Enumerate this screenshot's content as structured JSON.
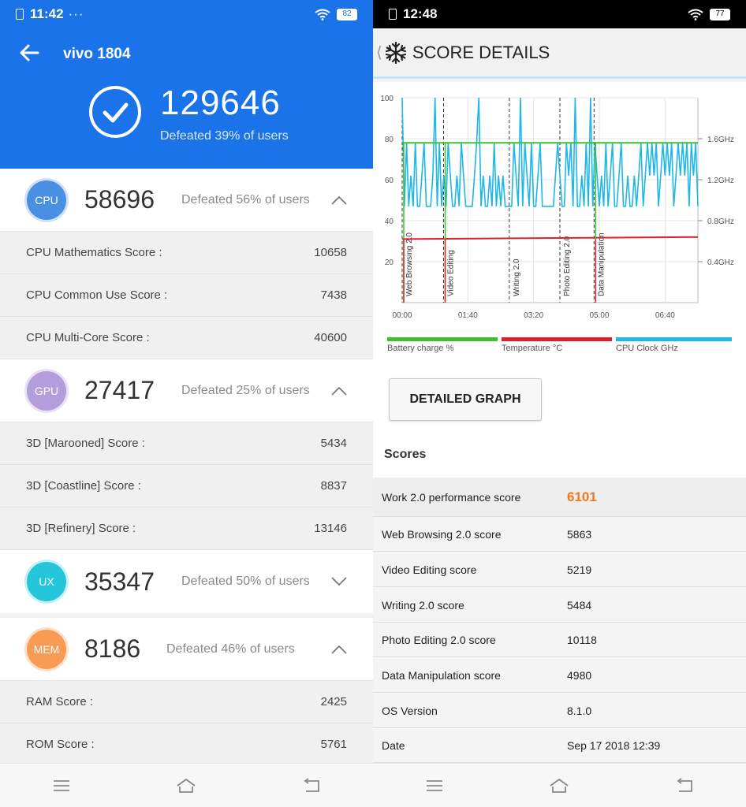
{
  "left": {
    "status_time": "11:42",
    "status_dots": "···",
    "battery": "82",
    "device_name": "vivo 1804",
    "total_score": "129646",
    "total_defeated": "Defeated 39% of users",
    "categories": [
      {
        "badge": "CPU",
        "score": "58696",
        "defeated": "Defeated 56% of users",
        "rows": [
          {
            "label": "CPU Mathematics Score :",
            "value": "10658"
          },
          {
            "label": "CPU Common Use Score :",
            "value": "7438"
          },
          {
            "label": "CPU Multi-Core Score :",
            "value": "40600"
          }
        ]
      },
      {
        "badge": "GPU",
        "score": "27417",
        "defeated": "Defeated 25% of users",
        "rows": [
          {
            "label": "3D [Marooned] Score :",
            "value": "5434"
          },
          {
            "label": "3D [Coastline] Score :",
            "value": "8837"
          },
          {
            "label": "3D [Refinery] Score :",
            "value": "13146"
          }
        ]
      },
      {
        "badge": "UX",
        "score": "35347",
        "defeated": "Defeated 50% of users",
        "rows": []
      },
      {
        "badge": "MEM",
        "score": "8186",
        "defeated": "Defeated 46% of users",
        "rows": [
          {
            "label": "RAM Score :",
            "value": "2425"
          },
          {
            "label": "ROM Score :",
            "value": "5761"
          }
        ]
      }
    ]
  },
  "right": {
    "status_time": "12:48",
    "battery": "77",
    "title": "SCORE DETAILS",
    "detailed_button": "DETAILED GRAPH",
    "scores_heading": "Scores",
    "scores": [
      {
        "label": "Work 2.0 performance score",
        "value": "6101"
      },
      {
        "label": "Web Browsing 2.0 score",
        "value": "5863"
      },
      {
        "label": "Video Editing score",
        "value": "5219"
      },
      {
        "label": "Writing 2.0 score",
        "value": "5484"
      },
      {
        "label": "Photo Editing 2.0 score",
        "value": "10118"
      },
      {
        "label": "Data Manipulation score",
        "value": "4980"
      },
      {
        "label": "OS Version",
        "value": "8.1.0"
      },
      {
        "label": "Date",
        "value": "Sep 17 2018 12:39"
      }
    ]
  },
  "chart_data": {
    "type": "line",
    "y_left_ticks": [
      "100",
      "80",
      "60",
      "40",
      "20"
    ],
    "y_right_ticks": [
      "1.6GHz",
      "1.2GHz",
      "0.8GHz",
      "0.4GHz"
    ],
    "x_ticks": [
      "00:00",
      "01:40",
      "03:20",
      "05:00",
      "06:40"
    ],
    "ylim": [
      0,
      100
    ],
    "xlim_seconds": [
      0,
      450
    ],
    "segment_labels": [
      {
        "label": "Web Browsing 2.0",
        "t": 0
      },
      {
        "label": "Video Editing",
        "t": 63
      },
      {
        "label": "Writing 2.0",
        "t": 163
      },
      {
        "label": "Photo Editing 2.0",
        "t": 240
      },
      {
        "label": "Data Manipulation",
        "t": 292
      }
    ],
    "series": [
      {
        "name": "Battery charge %",
        "color": "#3fbf2f",
        "t": [
          0,
          450
        ],
        "values": [
          78,
          78
        ]
      },
      {
        "name": "Temperature °C",
        "color": "#d9232a",
        "t": [
          0,
          450
        ],
        "values": [
          31,
          32
        ]
      },
      {
        "name": "CPU Clock GHz",
        "color": "#1fb6e8",
        "values": [
          100,
          47,
          78,
          47,
          62,
          47,
          78,
          47,
          47,
          62,
          78,
          47,
          47,
          47,
          62,
          100,
          47,
          78,
          47,
          62,
          47,
          78,
          62,
          47,
          47,
          62,
          47,
          78,
          62,
          47,
          47,
          47,
          47,
          62,
          78,
          100,
          47,
          62,
          47,
          47,
          62,
          47,
          78,
          47,
          62,
          47,
          62,
          47,
          47,
          47,
          47,
          78,
          62,
          47,
          100,
          47,
          78,
          62,
          47,
          78,
          47,
          47,
          62,
          78,
          47,
          47,
          47,
          47,
          47,
          47,
          62,
          78,
          62,
          47,
          47,
          78,
          62,
          78,
          47,
          100,
          47,
          47,
          62,
          47,
          78,
          47,
          100,
          47,
          78,
          62,
          47,
          62,
          47,
          78,
          47,
          62,
          78,
          47,
          47,
          62,
          78,
          47,
          47,
          62,
          47,
          47,
          62,
          47,
          62,
          78,
          47,
          62,
          78,
          62,
          78,
          62,
          78,
          47,
          62,
          78,
          62,
          78,
          62,
          78,
          47,
          62,
          78,
          62,
          78,
          62,
          78,
          47,
          78,
          62,
          78,
          47
        ]
      }
    ]
  }
}
